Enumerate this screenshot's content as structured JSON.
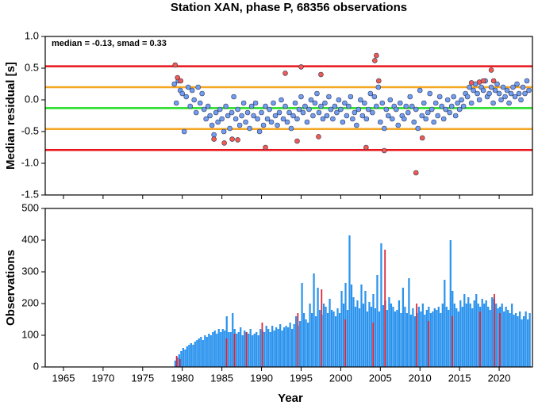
{
  "chart_data": [
    {
      "type": "scatter",
      "title": "Station XAN, phase P, 68356 observations",
      "ylabel": "Median residual [s]",
      "annotation": "median = -0.13, smad = 0.33",
      "xlim": [
        1962.7,
        2024.2
      ],
      "xticks": [
        1965,
        1970,
        1975,
        1980,
        1985,
        1990,
        1995,
        2000,
        2005,
        2010,
        2015,
        2020
      ],
      "ylim": [
        -1.5,
        1.0
      ],
      "yticks": [
        {
          "value": -1.5,
          "label": "-1.5"
        },
        {
          "value": -1,
          "label": "-1.0"
        },
        -0.5,
        {
          "value": 0,
          "label": "0.0"
        },
        0.5,
        {
          "value": 1,
          "label": "1.0"
        }
      ],
      "hlines": [
        {
          "value": 0.53,
          "color": "#e8141a"
        },
        {
          "value": -0.79,
          "color": "#e8141a"
        },
        {
          "value": 0.2,
          "color": "#f5a623"
        },
        {
          "value": -0.46,
          "color": "#f5a623"
        },
        {
          "value": -0.13,
          "color": "#22dd22"
        }
      ],
      "series": [
        {
          "color": "#6f9ef0",
          "x": [
            1979,
            1979.25,
            1979.5,
            1979.75,
            1980,
            1980.25,
            1980.5,
            1980.75,
            1981,
            1981.25,
            1981.5,
            1981.75,
            1982,
            1982.25,
            1982.5,
            1982.75,
            1983,
            1983.25,
            1983.5,
            1983.75,
            1984,
            1984.25,
            1984.5,
            1984.75,
            1985,
            1985.25,
            1985.5,
            1985.75,
            1986,
            1986.25,
            1986.5,
            1986.75,
            1987,
            1987.25,
            1987.5,
            1987.75,
            1988,
            1988.25,
            1988.5,
            1988.75,
            1989,
            1989.25,
            1989.5,
            1989.75,
            1990,
            1990.25,
            1990.5,
            1990.75,
            1991,
            1991.25,
            1991.5,
            1991.75,
            1992,
            1992.25,
            1992.5,
            1992.75,
            1993,
            1993.25,
            1993.5,
            1993.75,
            1994,
            1994.25,
            1994.5,
            1994.75,
            1995,
            1995.25,
            1995.5,
            1995.75,
            1996,
            1996.25,
            1996.5,
            1996.75,
            1997,
            1997.25,
            1997.5,
            1997.75,
            1998,
            1998.25,
            1998.5,
            1998.75,
            1999,
            1999.25,
            1999.5,
            1999.75,
            2000,
            2000.25,
            2000.5,
            2000.75,
            2001,
            2001.25,
            2001.5,
            2001.75,
            2002,
            2002.25,
            2002.5,
            2002.75,
            2003,
            2003.25,
            2003.5,
            2003.75,
            2004,
            2004.25,
            2004.5,
            2004.75,
            2005,
            2005.25,
            2005.5,
            2005.75,
            2006,
            2006.25,
            2006.5,
            2006.75,
            2007,
            2007.25,
            2007.5,
            2007.75,
            2008,
            2008.25,
            2008.5,
            2008.75,
            2009,
            2009.25,
            2009.5,
            2009.75,
            2010,
            2010.25,
            2010.5,
            2010.75,
            2011,
            2011.25,
            2011.5,
            2011.75,
            2012,
            2012.25,
            2012.5,
            2012.75,
            2013,
            2013.25,
            2013.5,
            2013.75,
            2014,
            2014.25,
            2014.5,
            2014.75,
            2015,
            2015.25,
            2015.5,
            2015.75,
            2016,
            2016.25,
            2016.5,
            2016.75,
            2017,
            2017.25,
            2017.5,
            2017.75,
            2018,
            2018.25,
            2018.5,
            2018.75,
            2019,
            2019.25,
            2019.5,
            2019.75,
            2020,
            2020.25,
            2020.5,
            2020.75,
            2021,
            2021.25,
            2021.5,
            2021.75,
            2022,
            2022.25,
            2022.5,
            2022.75,
            2023,
            2023.25,
            2023.5,
            2023.75
          ],
          "values": [
            0.25,
            -0.05,
            0.3,
            0.15,
            0.1,
            -0.5,
            0.05,
            0.2,
            -0.1,
            0.15,
            0,
            -0.2,
            0.2,
            -0.05,
            0.1,
            -0.15,
            -0.3,
            -0.1,
            -0.25,
            -0.4,
            -0.55,
            -0.2,
            -0.35,
            -0.15,
            -0.3,
            -0.5,
            -0.1,
            -0.25,
            -0.45,
            -0.2,
            0.05,
            -0.3,
            -0.15,
            -0.4,
            -0.25,
            -0.05,
            -0.35,
            -0.2,
            -0.45,
            -0.1,
            -0.25,
            -0.05,
            -0.3,
            -0.5,
            -0.2,
            -0.4,
            -0.1,
            -0.3,
            -0.15,
            -0.35,
            -0.05,
            -0.25,
            -0.4,
            -0.2,
            0,
            -0.3,
            -0.1,
            -0.35,
            -0.2,
            -0.45,
            -0.25,
            -0.05,
            -0.3,
            -0.15,
            0.05,
            -0.2,
            -0.1,
            -0.35,
            -0.15,
            0,
            -0.25,
            -0.05,
            0.1,
            -0.2,
            -0.1,
            -0.3,
            -0.05,
            -0.25,
            0.05,
            -0.15,
            -0.3,
            -0.1,
            -0.2,
            0,
            -0.15,
            -0.35,
            -0.05,
            -0.25,
            -0.1,
            0.05,
            -0.3,
            -0.2,
            -0.4,
            -0.15,
            0,
            -0.25,
            -0.05,
            -0.3,
            -0.15,
            0.1,
            -0.2,
            0.05,
            -0.1,
            0.2,
            -0.35,
            -0.05,
            -0.45,
            -0.15,
            -0.25,
            0,
            -0.3,
            -0.1,
            -0.15,
            -0.4,
            -0.05,
            -0.25,
            -0.3,
            -0.1,
            -0.2,
            0.05,
            -0.1,
            -0.35,
            -0.15,
            -0.45,
            0.15,
            -0.25,
            -0.05,
            -0.3,
            -0.2,
            0.1,
            -0.15,
            -0.35,
            -0.05,
            -0.25,
            0.05,
            -0.1,
            -0.3,
            -0.15,
            0,
            -0.2,
            -0.1,
            0.05,
            -0.25,
            -0.05,
            -0.15,
            0,
            -0.1,
            0.1,
            0.05,
            0.2,
            -0.05,
            0.15,
            0.25,
            0.1,
            0,
            0.2,
            0.15,
            0.3,
            0.05,
            0.1,
            0.2,
            -0.05,
            0.15,
            0.25,
            0.1,
            0,
            0.2,
            0.05,
            0.15,
            -0.05,
            0.1,
            0.2,
            0.05,
            0.25,
            0.1,
            0,
            0.2,
            0.1,
            0.3,
            0.15
          ]
        },
        {
          "color": "#f05a50",
          "x": [
            1979.1,
            1979.4,
            1979.8,
            1984,
            1985.3,
            1986.3,
            1987,
            1993,
            1990.5,
            1995,
            1997.5,
            1997.2,
            2003.2,
            2004.3,
            2004.5,
            2004.8,
            2005.5,
            2009.5,
            2010.3,
            2016.5,
            2017.5,
            2018,
            2019,
            2019.3,
            1994.5
          ],
          "values": [
            0.55,
            0.35,
            0.3,
            -0.62,
            -0.68,
            -0.62,
            -0.63,
            0.42,
            -0.75,
            0.52,
            0.4,
            -0.58,
            -0.75,
            0.62,
            0.7,
            0.3,
            -0.8,
            -1.15,
            -0.6,
            0.27,
            0.28,
            0.3,
            0.47,
            0.3,
            -0.65
          ]
        }
      ]
    },
    {
      "type": "bar",
      "xlabel": "Year",
      "ylabel": "Observations",
      "xlim": [
        1962.7,
        2024.2
      ],
      "xticks": [
        1965,
        1970,
        1975,
        1980,
        1985,
        1990,
        1995,
        2000,
        2005,
        2010,
        2015,
        2020
      ],
      "ylim": [
        0,
        500
      ],
      "yticks": [
        0,
        100,
        200,
        300,
        400,
        500
      ],
      "bar_width": 0.25,
      "series": [
        {
          "color": "#2b93ee",
          "x": [
            1979,
            1979.25,
            1979.5,
            1979.75,
            1980,
            1980.25,
            1980.5,
            1980.75,
            1981,
            1981.25,
            1981.5,
            1981.75,
            1982,
            1982.25,
            1982.5,
            1982.75,
            1983,
            1983.25,
            1983.5,
            1983.75,
            1984,
            1984.25,
            1984.5,
            1984.75,
            1985,
            1985.25,
            1985.5,
            1985.75,
            1986,
            1986.25,
            1986.5,
            1986.75,
            1987,
            1987.25,
            1987.5,
            1987.75,
            1988,
            1988.25,
            1988.5,
            1988.75,
            1989,
            1989.25,
            1989.5,
            1989.75,
            1990,
            1990.25,
            1990.5,
            1990.75,
            1991,
            1991.25,
            1991.5,
            1991.75,
            1992,
            1992.25,
            1992.5,
            1992.75,
            1993,
            1993.25,
            1993.5,
            1993.75,
            1994,
            1994.25,
            1994.5,
            1994.75,
            1995,
            1995.25,
            1995.5,
            1995.75,
            1996,
            1996.25,
            1996.5,
            1996.75,
            1997,
            1997.25,
            1997.5,
            1997.75,
            1998,
            1998.25,
            1998.5,
            1998.75,
            1999,
            1999.25,
            1999.5,
            1999.75,
            2000,
            2000.25,
            2000.5,
            2000.75,
            2001,
            2001.25,
            2001.5,
            2001.75,
            2002,
            2002.25,
            2002.5,
            2002.75,
            2003,
            2003.25,
            2003.5,
            2003.75,
            2004,
            2004.25,
            2004.5,
            2004.75,
            2005,
            2005.25,
            2005.5,
            2005.75,
            2006,
            2006.25,
            2006.5,
            2006.75,
            2007,
            2007.25,
            2007.5,
            2007.75,
            2008,
            2008.25,
            2008.5,
            2008.75,
            2009,
            2009.25,
            2009.5,
            2009.75,
            2010,
            2010.25,
            2010.5,
            2010.75,
            2011,
            2011.25,
            2011.5,
            2011.75,
            2012,
            2012.25,
            2012.5,
            2012.75,
            2013,
            2013.25,
            2013.5,
            2013.75,
            2014,
            2014.25,
            2014.5,
            2014.75,
            2015,
            2015.25,
            2015.5,
            2015.75,
            2016,
            2016.25,
            2016.5,
            2016.75,
            2017,
            2017.25,
            2017.5,
            2017.75,
            2018,
            2018.25,
            2018.5,
            2018.75,
            2019,
            2019.25,
            2019.5,
            2019.75,
            2020,
            2020.25,
            2020.5,
            2020.75,
            2021,
            2021.25,
            2021.5,
            2021.75,
            2022,
            2022.25,
            2022.5,
            2022.75,
            2023,
            2023.25,
            2023.5,
            2023.75
          ],
          "values": [
            20,
            30,
            40,
            50,
            60,
            55,
            65,
            70,
            75,
            70,
            80,
            85,
            90,
            95,
            85,
            100,
            95,
            105,
            100,
            110,
            115,
            105,
            120,
            110,
            120,
            115,
            160,
            110,
            110,
            170,
            120,
            105,
            110,
            125,
            100,
            115,
            110,
            105,
            120,
            100,
            105,
            110,
            100,
            120,
            115,
            110,
            130,
            120,
            110,
            130,
            115,
            125,
            120,
            135,
            115,
            125,
            130,
            125,
            140,
            120,
            135,
            160,
            130,
            145,
            265,
            170,
            150,
            140,
            200,
            170,
            295,
            160,
            250,
            180,
            165,
            200,
            190,
            170,
            215,
            180,
            175,
            160,
            185,
            170,
            240,
            200,
            265,
            180,
            415,
            260,
            220,
            190,
            210,
            185,
            260,
            200,
            240,
            175,
            205,
            190,
            230,
            185,
            290,
            175,
            390,
            195,
            210,
            180,
            220,
            200,
            190,
            175,
            180,
            210,
            170,
            250,
            190,
            170,
            280,
            165,
            185,
            160,
            170,
            190,
            175,
            200,
            165,
            180,
            190,
            170,
            175,
            185,
            180,
            190,
            170,
            200,
            275,
            190,
            180,
            400,
            240,
            200,
            185,
            175,
            210,
            190,
            230,
            200,
            220,
            200,
            185,
            210,
            230,
            200,
            190,
            215,
            200,
            210,
            190,
            180,
            220,
            215,
            200,
            185,
            190,
            200,
            175,
            190,
            180,
            170,
            200,
            165,
            170,
            160,
            175,
            150,
            160,
            175,
            150,
            170
          ]
        },
        {
          "color": "#dd2233",
          "x": [
            1979.2,
            1979.6,
            1985.5,
            1986.5,
            1988,
            1990,
            1994.5,
            1997.5,
            2000.5,
            2004,
            2005.5,
            2009.5,
            2011,
            2014,
            2017.5,
            2019.3,
            2020
          ],
          "values": [
            35,
            25,
            90,
            105,
            110,
            140,
            170,
            245,
            150,
            140,
            370,
            200,
            145,
            160,
            175,
            230,
            170
          ]
        }
      ]
    }
  ]
}
